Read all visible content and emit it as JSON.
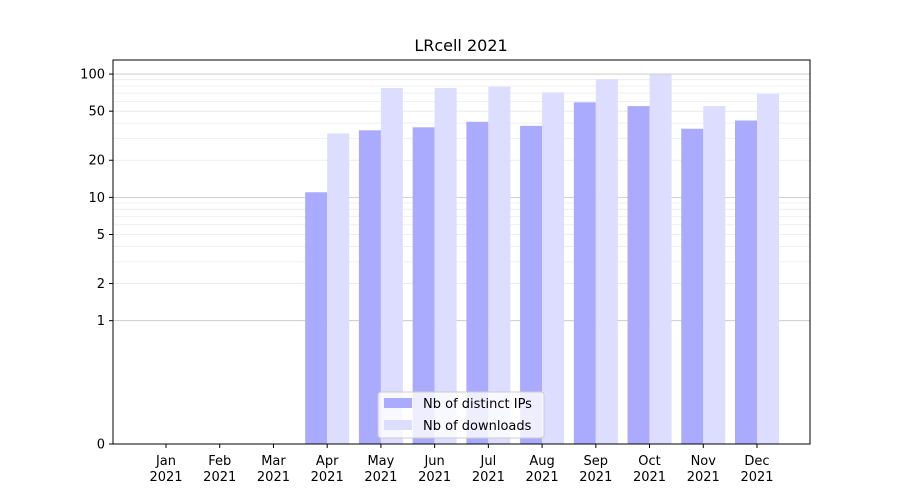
{
  "chart_data": {
    "type": "bar",
    "title": "LRcell 2021",
    "xlabel": "",
    "ylabel": "",
    "yscale": "symlog",
    "ylim": [
      0,
      130
    ],
    "grid": "horizontal",
    "legend_position": "lower-center",
    "categories": [
      "Jan\n2021",
      "Feb\n2021",
      "Mar\n2021",
      "Apr\n2021",
      "May\n2021",
      "Jun\n2021",
      "Jul\n2021",
      "Aug\n2021",
      "Sep\n2021",
      "Oct\n2021",
      "Nov\n2021",
      "Dec\n2021"
    ],
    "y_ticks": [
      0,
      1,
      2,
      5,
      10,
      20,
      50,
      100
    ],
    "series": [
      {
        "name": "Nb of distinct IPs",
        "color": "#aaaaff",
        "values": [
          0,
          0,
          0,
          11,
          35,
          37,
          41,
          38,
          59,
          55,
          36,
          42
        ]
      },
      {
        "name": "Nb of downloads",
        "color": "#ddddff",
        "values": [
          0,
          0,
          0,
          33,
          77,
          77,
          79,
          71,
          91,
          99,
          55,
          69
        ]
      }
    ]
  }
}
